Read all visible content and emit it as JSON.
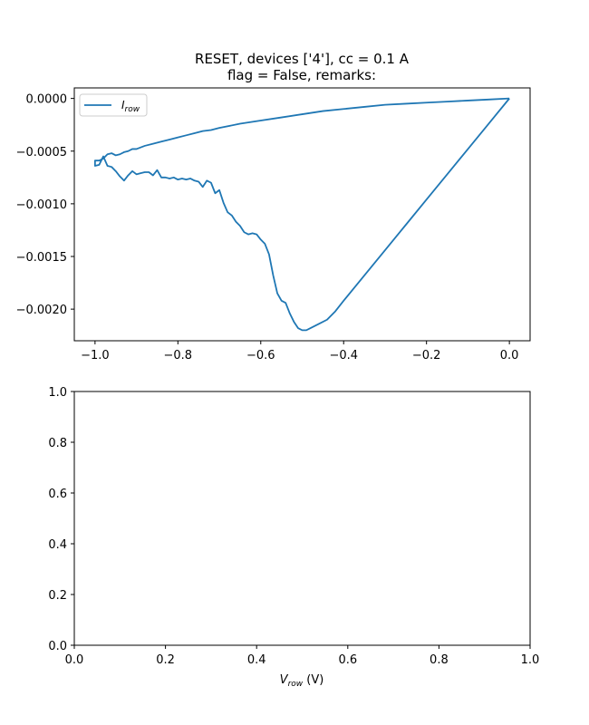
{
  "figure": {
    "title_line1": "RESET, devices ['4'], cc = 0.1 A",
    "title_line2": "flag = False, remarks:"
  },
  "chart_data": [
    {
      "type": "line",
      "title": "RESET, devices ['4'], cc = 0.1 A\nflag = False, remarks:",
      "xlabel": "",
      "ylabel": "",
      "xlim": [
        -1.05,
        0.05
      ],
      "ylim": [
        -0.0023,
        0.0001
      ],
      "xticks": [
        -1.0,
        -0.8,
        -0.6,
        -0.4,
        -0.2,
        0.0
      ],
      "xtick_labels": [
        "−1.0",
        "−0.8",
        "−0.6",
        "−0.4",
        "−0.2",
        "0.0"
      ],
      "yticks": [
        0.0,
        -0.0005,
        -0.001,
        -0.0015,
        -0.002
      ],
      "ytick_labels": [
        "0.0000",
        "−0.0005",
        "−0.0010",
        "−0.0015",
        "−0.0020"
      ],
      "legend": {
        "placement": "upper-left",
        "entries": [
          "I_row"
        ],
        "label_main": "I",
        "label_sub": "row"
      },
      "grid": false,
      "color": "#1f77b4",
      "series": [
        {
          "name": "I_row",
          "x": [
            0.0,
            -0.05,
            -0.1,
            -0.15,
            -0.2,
            -0.25,
            -0.3,
            -0.35,
            -0.4,
            -0.42,
            -0.44,
            -0.46,
            -0.48,
            -0.49,
            -0.5,
            -0.51,
            -0.52,
            -0.53,
            -0.54,
            -0.55,
            -0.56,
            -0.57,
            -0.58,
            -0.59,
            -0.6,
            -0.61,
            -0.62,
            -0.63,
            -0.64,
            -0.65,
            -0.66,
            -0.67,
            -0.68,
            -0.69,
            -0.7,
            -0.71,
            -0.72,
            -0.73,
            -0.74,
            -0.75,
            -0.76,
            -0.77,
            -0.78,
            -0.79,
            -0.8,
            -0.81,
            -0.82,
            -0.83,
            -0.84,
            -0.85,
            -0.86,
            -0.87,
            -0.88,
            -0.89,
            -0.9,
            -0.91,
            -0.92,
            -0.93,
            -0.94,
            -0.95,
            -0.96,
            -0.97,
            -0.98,
            -0.99,
            -1.0,
            -1.0,
            -0.99,
            -0.98,
            -0.97,
            -0.96,
            -0.95,
            -0.94,
            -0.93,
            -0.92,
            -0.91,
            -0.9,
            -0.88,
            -0.86,
            -0.84,
            -0.82,
            -0.8,
            -0.78,
            -0.76,
            -0.74,
            -0.72,
            -0.7,
            -0.65,
            -0.6,
            -0.55,
            -0.5,
            -0.45,
            -0.4,
            -0.35,
            -0.3,
            -0.25,
            -0.2,
            -0.15,
            -0.1,
            -0.05,
            0.0
          ],
          "y": [
            0.0,
            -0.00024,
            -0.00048,
            -0.00072,
            -0.00096,
            -0.0012,
            -0.00144,
            -0.00168,
            -0.00192,
            -0.00202,
            -0.0021,
            -0.00214,
            -0.00218,
            -0.0022,
            -0.0022,
            -0.00218,
            -0.00212,
            -0.00204,
            -0.00194,
            -0.00192,
            -0.00185,
            -0.00168,
            -0.00148,
            -0.00138,
            -0.00134,
            -0.00129,
            -0.00128,
            -0.00129,
            -0.00127,
            -0.00121,
            -0.00117,
            -0.00111,
            -0.00108,
            -0.00099,
            -0.00087,
            -0.0009,
            -0.0008,
            -0.00078,
            -0.00084,
            -0.00079,
            -0.00078,
            -0.00076,
            -0.00077,
            -0.00076,
            -0.00077,
            -0.00075,
            -0.00076,
            -0.00075,
            -0.00075,
            -0.00068,
            -0.00073,
            -0.0007,
            -0.0007,
            -0.00071,
            -0.00072,
            -0.00069,
            -0.00073,
            -0.00078,
            -0.00074,
            -0.00069,
            -0.00065,
            -0.00064,
            -0.00055,
            -0.00063,
            -0.00064,
            -0.00059,
            -0.00059,
            -0.00057,
            -0.00053,
            -0.00052,
            -0.00054,
            -0.00053,
            -0.00051,
            -0.0005,
            -0.00048,
            -0.00048,
            -0.00045,
            -0.00043,
            -0.00041,
            -0.00039,
            -0.00037,
            -0.00035,
            -0.00033,
            -0.00031,
            -0.0003,
            -0.00028,
            -0.00024,
            -0.00021,
            -0.00018,
            -0.00015,
            -0.00012,
            -0.0001,
            -8e-05,
            -6e-05,
            -5e-05,
            -4e-05,
            -3e-05,
            -2e-05,
            -1e-05,
            0.0
          ]
        }
      ]
    },
    {
      "type": "line",
      "title": "",
      "xlabel": "V_row (V)",
      "xlabel_main": "V",
      "xlabel_sub": "row",
      "xlabel_unit": " (V)",
      "ylabel": "",
      "xlim": [
        0.0,
        1.0
      ],
      "ylim": [
        0.0,
        1.0
      ],
      "xticks": [
        0.0,
        0.2,
        0.4,
        0.6,
        0.8,
        1.0
      ],
      "xtick_labels": [
        "0.0",
        "0.2",
        "0.4",
        "0.6",
        "0.8",
        "1.0"
      ],
      "yticks": [
        0.0,
        0.2,
        0.4,
        0.6,
        0.8,
        1.0
      ],
      "ytick_labels": [
        "0.0",
        "0.2",
        "0.4",
        "0.6",
        "0.8",
        "1.0"
      ],
      "grid": false,
      "series": []
    }
  ]
}
